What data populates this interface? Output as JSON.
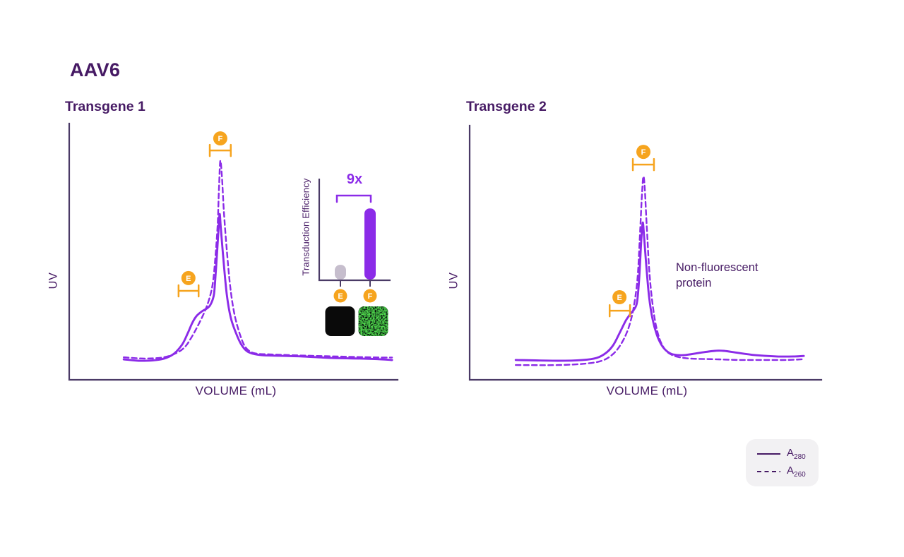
{
  "figure": {
    "title": "AAV6"
  },
  "colors": {
    "purple": "#8B2BE8",
    "dark_purple": "#461A64",
    "axis": "#4A3A66",
    "orange": "#F6A41E",
    "white": "#FFFFFF",
    "gray_bar": "#C6BECD",
    "legend_bg": "#F2F1F3",
    "black_square": "#0A0A0A",
    "green_base": "#051E05"
  },
  "legend": {
    "items": [
      {
        "base": "A",
        "sub": "280",
        "line_style": "solid"
      },
      {
        "base": "A",
        "sub": "260",
        "line_style": "dashed"
      }
    ]
  },
  "chart_data": [
    {
      "type": "line",
      "title": "Transgene 1",
      "xlabel": "VOLUME (mL)",
      "ylabel": "UV",
      "axis_ticks": "none (arbitrary units)",
      "xlim": [
        0,
        100
      ],
      "ylim": [
        0,
        100
      ],
      "grid": false,
      "series": [
        {
          "name": "A280",
          "line_style": "solid",
          "points": [
            [
              16.6,
              8
            ],
            [
              21.9,
              7.4
            ],
            [
              28,
              8
            ],
            [
              31.6,
              9.9
            ],
            [
              34.4,
              13.8
            ],
            [
              36.1,
              18.2
            ],
            [
              37.4,
              22
            ],
            [
              38.7,
              24.8
            ],
            [
              40.4,
              26.7
            ],
            [
              42.2,
              28.1
            ],
            [
              43.2,
              29.8
            ],
            [
              44.1,
              33.6
            ],
            [
              44.7,
              43.5
            ],
            [
              45.4,
              57.3
            ],
            [
              45.8,
              64.7
            ],
            [
              46.2,
              58.7
            ],
            [
              47.1,
              44.9
            ],
            [
              48,
              33.1
            ],
            [
              49.2,
              24.2
            ],
            [
              50.8,
              18.2
            ],
            [
              52.3,
              14
            ],
            [
              54,
              11.3
            ],
            [
              55.9,
              10.2
            ],
            [
              58.9,
              9.6
            ],
            [
              63.9,
              9.4
            ],
            [
              71.4,
              9.1
            ],
            [
              80,
              8.5
            ],
            [
              88.6,
              8.3
            ],
            [
              95.1,
              8
            ],
            [
              98.3,
              7.7
            ]
          ]
        },
        {
          "name": "A260",
          "line_style": "dashed",
          "points": [
            [
              16.6,
              8.8
            ],
            [
              23,
              8.3
            ],
            [
              28.8,
              8.8
            ],
            [
              32.7,
              10.5
            ],
            [
              35.3,
              12.9
            ],
            [
              37.2,
              16.5
            ],
            [
              39.1,
              20.9
            ],
            [
              41.1,
              26.2
            ],
            [
              42.6,
              31.4
            ],
            [
              43.7,
              37.5
            ],
            [
              44.5,
              47.7
            ],
            [
              45.2,
              60.6
            ],
            [
              45.6,
              74.4
            ],
            [
              46,
              85.4
            ],
            [
              46.5,
              79.3
            ],
            [
              47.1,
              65.6
            ],
            [
              48,
              50.4
            ],
            [
              49,
              36.6
            ],
            [
              50.1,
              27
            ],
            [
              51.4,
              20.1
            ],
            [
              53.1,
              14
            ],
            [
              54.8,
              11.3
            ],
            [
              57.2,
              10.2
            ],
            [
              61.7,
              9.9
            ],
            [
              70.3,
              9.5
            ],
            [
              78.9,
              9.2
            ],
            [
              87.5,
              8.9
            ],
            [
              95.1,
              8.7
            ],
            [
              98.3,
              8.7
            ]
          ]
        }
      ],
      "fraction_markers": [
        {
          "label": "E",
          "circle": [
            36.3,
            39.7
          ],
          "bracket_y": 34.7,
          "bracket_x": [
            33.3,
            39.4
          ]
        },
        {
          "label": "F",
          "circle": [
            46.0,
            94.2
          ],
          "bracket_y": 89.5,
          "bracket_x": [
            42.8,
            49.2
          ]
        }
      ],
      "inset": {
        "type": "bar",
        "ylabel": "Transduction Efficiency",
        "categories": [
          "E",
          "F"
        ],
        "relative_values": [
          1,
          9
        ],
        "bar_height_fraction": [
          0.145,
          0.7
        ],
        "fold_annotation": "9x",
        "images": [
          {
            "category": "E",
            "description": "black no-fluorescence micrograph"
          },
          {
            "category": "F",
            "description": "green fluorescence micrograph"
          }
        ]
      }
    },
    {
      "type": "line",
      "title": "Transgene 2",
      "xlabel": "VOLUME (mL)",
      "ylabel": "UV",
      "annotation": "Non-fluorescent protein",
      "axis_ticks": "none (arbitrary units)",
      "xlim": [
        0,
        100
      ],
      "ylim": [
        0,
        100
      ],
      "grid": false,
      "series": [
        {
          "name": "A280",
          "line_style": "solid",
          "points": [
            [
              13.1,
              7.8
            ],
            [
              25.1,
              7.5
            ],
            [
              32.1,
              7.8
            ],
            [
              36.1,
              8.6
            ],
            [
              38.8,
              10.6
            ],
            [
              40.8,
              13.6
            ],
            [
              42.6,
              18.3
            ],
            [
              44.4,
              23.3
            ],
            [
              45.8,
              26.1
            ],
            [
              46.8,
              27.8
            ],
            [
              47.6,
              30.6
            ],
            [
              48.2,
              39.7
            ],
            [
              48.8,
              55
            ],
            [
              49.2,
              61.9
            ],
            [
              49.6,
              56.4
            ],
            [
              50.2,
              45.3
            ],
            [
              51,
              32.8
            ],
            [
              52,
              23.9
            ],
            [
              53.2,
              17.8
            ],
            [
              54.6,
              13.6
            ],
            [
              56.2,
              11.1
            ],
            [
              57.8,
              10
            ],
            [
              60.8,
              9.7
            ],
            [
              65.3,
              10.6
            ],
            [
              69.7,
              11.4
            ],
            [
              72.3,
              11.4
            ],
            [
              76.3,
              10.6
            ],
            [
              81.3,
              9.7
            ],
            [
              87.3,
              9.2
            ],
            [
              92.4,
              9.2
            ],
            [
              95,
              9.4
            ]
          ]
        },
        {
          "name": "A260",
          "line_style": "dashed",
          "points": [
            [
              13.1,
              5.8
            ],
            [
              25.1,
              5.8
            ],
            [
              33.1,
              6.4
            ],
            [
              37.6,
              7.5
            ],
            [
              40.4,
              9.7
            ],
            [
              42.6,
              13.1
            ],
            [
              44.6,
              18.3
            ],
            [
              46,
              24.4
            ],
            [
              47,
              31.7
            ],
            [
              47.8,
              41.1
            ],
            [
              48.4,
              56.4
            ],
            [
              49,
              73.1
            ],
            [
              49.4,
              80
            ],
            [
              49.8,
              75
            ],
            [
              50.4,
              59.2
            ],
            [
              51.2,
              40.6
            ],
            [
              52.4,
              25.8
            ],
            [
              53.8,
              16.9
            ],
            [
              55.4,
              12.2
            ],
            [
              57.2,
              10
            ],
            [
              59.6,
              8.9
            ],
            [
              63.3,
              8.3
            ],
            [
              69.3,
              8.1
            ],
            [
              76.3,
              7.8
            ],
            [
              83.3,
              7.8
            ],
            [
              90.4,
              7.8
            ],
            [
              95,
              8.1
            ]
          ]
        }
      ],
      "fraction_markers": [
        {
          "label": "E",
          "circle": [
            42.6,
            32.5
          ],
          "bracket_y": 27.2,
          "bracket_x": [
            39.8,
            45.6
          ]
        },
        {
          "label": "F",
          "circle": [
            49.4,
            89.7
          ],
          "bracket_y": 84.7,
          "bracket_x": [
            46.4,
            52.4
          ]
        }
      ]
    }
  ]
}
